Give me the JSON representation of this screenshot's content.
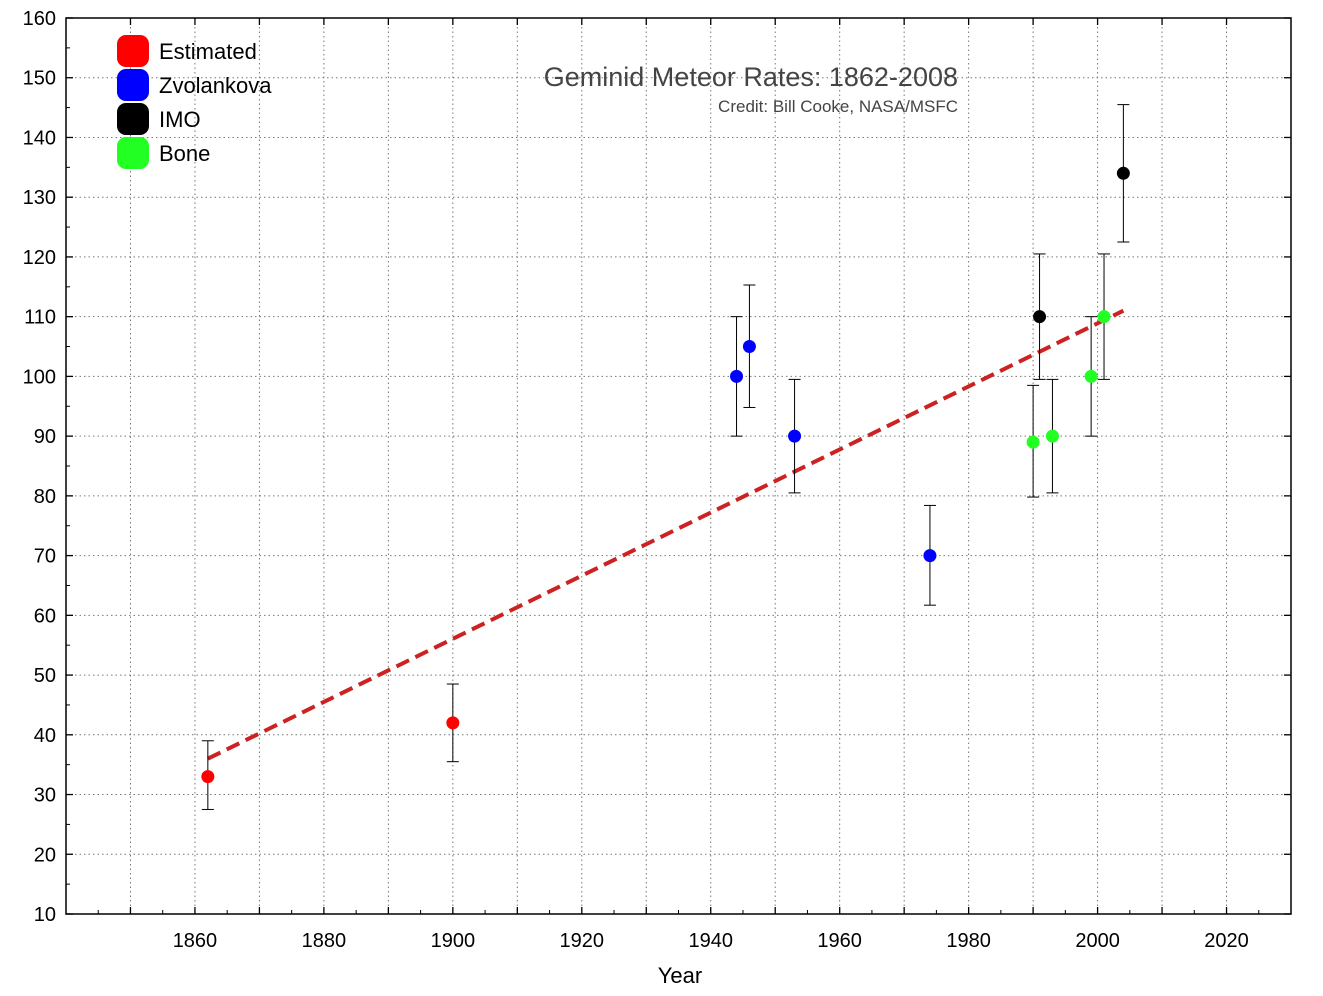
{
  "chart_data": {
    "type": "scatter",
    "title": "Geminid Meteor Rates: 1862-2008",
    "subtitle": "Credit: Bill Cooke, NASA/MSFC",
    "xlabel": "Year",
    "ylabel": "",
    "xlim": [
      1840,
      2030
    ],
    "ylim": [
      10,
      160
    ],
    "xticks": [
      1860,
      1880,
      1900,
      1920,
      1940,
      1960,
      1980,
      2000,
      2020
    ],
    "yticks": [
      10,
      20,
      30,
      40,
      50,
      60,
      70,
      80,
      90,
      100,
      110,
      120,
      130,
      140,
      150,
      160
    ],
    "grid": true,
    "legend_position": "top-left",
    "series": [
      {
        "name": "Estimated",
        "color": "#ff0000",
        "points": [
          {
            "x": 1862,
            "y": 33,
            "err_low": 27.5,
            "err_high": 39
          },
          {
            "x": 1900,
            "y": 42,
            "err_low": 35.5,
            "err_high": 48.5
          }
        ]
      },
      {
        "name": "Zvolankova",
        "color": "#0000ff",
        "points": [
          {
            "x": 1944,
            "y": 100,
            "err_low": 90,
            "err_high": 110
          },
          {
            "x": 1946,
            "y": 105,
            "err_low": 94.8,
            "err_high": 115.3
          },
          {
            "x": 1953,
            "y": 90,
            "err_low": 80.5,
            "err_high": 99.5
          },
          {
            "x": 1974,
            "y": 70,
            "err_low": 61.7,
            "err_high": 78.4
          }
        ]
      },
      {
        "name": "IMO",
        "color": "#000000",
        "points": [
          {
            "x": 1991,
            "y": 110,
            "err_low": 99.5,
            "err_high": 120.5
          },
          {
            "x": 2004,
            "y": 134,
            "err_low": 122.5,
            "err_high": 145.5
          }
        ]
      },
      {
        "name": "Bone",
        "color": "#22ff22",
        "points": [
          {
            "x": 1990,
            "y": 89,
            "err_low": 79.8,
            "err_high": 98.5
          },
          {
            "x": 1993,
            "y": 90,
            "err_low": 80.5,
            "err_high": 99.5
          },
          {
            "x": 1999,
            "y": 100,
            "err_low": 90,
            "err_high": 110
          },
          {
            "x": 2001,
            "y": 110,
            "err_low": 99.5,
            "err_high": 120.5
          }
        ]
      }
    ],
    "trendline": {
      "style": "dashed",
      "color": "#cc2222",
      "x": [
        1862,
        2004
      ],
      "y": [
        36,
        111
      ]
    }
  }
}
